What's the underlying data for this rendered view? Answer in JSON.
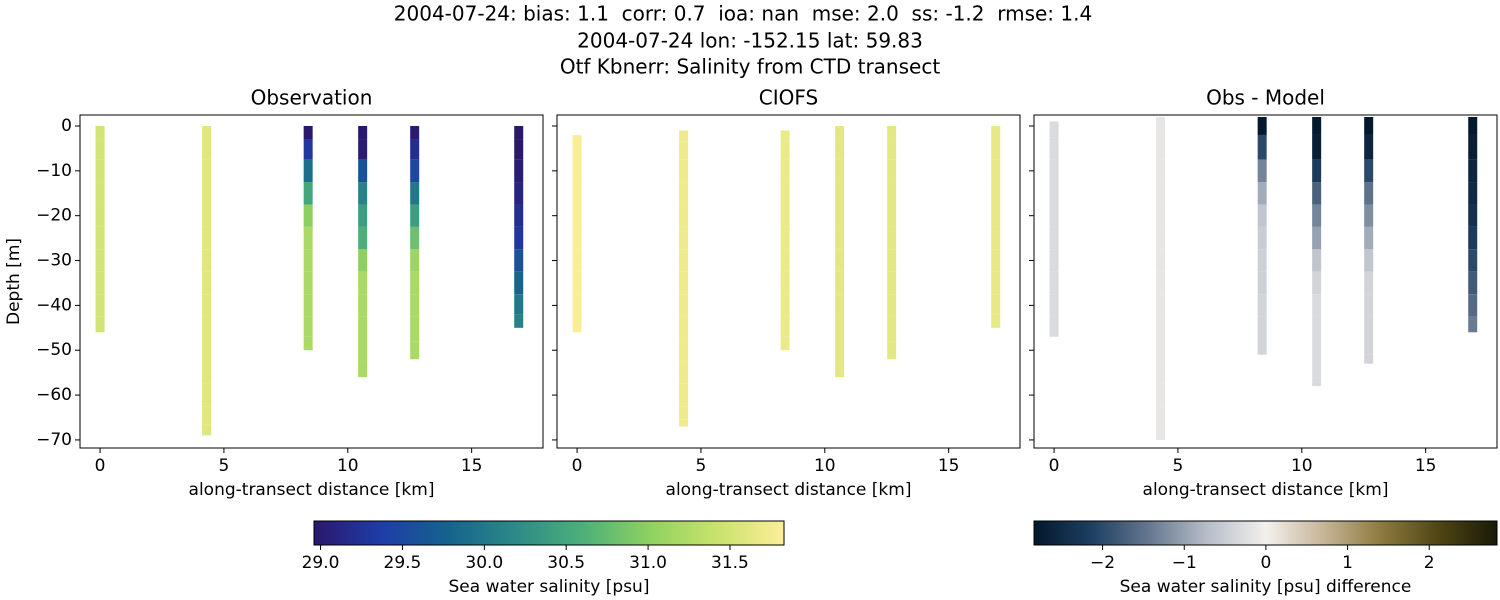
{
  "suptitle": [
    "2004-07-24: bias: 1.1  corr: 0.7  ioa: nan  mse: 2.0  ss: -1.2  rmse: 1.4",
    "2004-07-24 lon: -152.15 lat: 59.83",
    "Otf Kbnerr: Salinity from CTD transect"
  ],
  "colorbars": [
    {
      "label": "Sea water salinity [psu]",
      "clim": [
        28.96,
        31.83
      ],
      "ticks": [
        {
          "value": 29,
          "label": "29.0"
        },
        {
          "value": 29.5,
          "label": "29.5"
        },
        {
          "value": 30,
          "label": "30.0"
        },
        {
          "value": 30.5,
          "label": "30.5"
        },
        {
          "value": 31,
          "label": "31.0"
        },
        {
          "value": 31.5,
          "label": "31.5"
        }
      ],
      "colors": [
        "#2a186c",
        "#1f3da8",
        "#15638d",
        "#2d8a87",
        "#4caf7a",
        "#8fd160",
        "#c9e26d",
        "#fdee99"
      ]
    },
    {
      "label": "Sea water salinity [psu] difference",
      "clim": [
        -2.84,
        2.83
      ],
      "ticks": [
        {
          "value": -2,
          "label": "−2"
        },
        {
          "value": -1,
          "label": "−1"
        },
        0,
        1,
        2
      ],
      "colors": [
        "#04172b",
        "#1e3f62",
        "#66788f",
        "#b7bec8",
        "#f3f0ed",
        "#c6b597",
        "#8d7a3f",
        "#4e4514",
        "#191a08"
      ]
    }
  ],
  "chart_data": [
    {
      "type": "scatter",
      "title": "Observation",
      "xlabel": "along-transect distance [km]",
      "ylabel": "Depth [m]",
      "colorbar": 0,
      "ytick_labels": true,
      "xlim": [
        -0.81,
        17.88
      ],
      "ylim": [
        -71.8,
        2.45
      ],
      "xticks": [
        0,
        5,
        10,
        15
      ],
      "yticks": [
        0,
        {
          "value": -10,
          "label": "−10"
        },
        {
          "value": -20,
          "label": "−20"
        },
        {
          "value": -30,
          "label": "−30"
        },
        {
          "value": -40,
          "label": "−40"
        },
        {
          "value": -50,
          "label": "−50"
        },
        {
          "value": -60,
          "label": "−60"
        },
        {
          "value": -70,
          "label": "−70"
        }
      ],
      "series": [
        {
          "x": 0,
          "y": [
            -1,
            -5,
            -10,
            -15,
            -20,
            -25,
            -30,
            -35,
            -40,
            -45
          ],
          "values": [
            31.5,
            31.5,
            31.5,
            31.5,
            31.5,
            31.5,
            31.5,
            31.5,
            31.5,
            31.5
          ]
        },
        {
          "x": 4.3,
          "y": [
            -1,
            -5,
            -10,
            -15,
            -20,
            -25,
            -30,
            -35,
            -40,
            -45,
            -50,
            -55,
            -60,
            -65,
            -68
          ],
          "values": [
            31.6,
            31.6,
            31.6,
            31.6,
            31.6,
            31.6,
            31.6,
            31.6,
            31.6,
            31.6,
            31.6,
            31.6,
            31.6,
            31.6,
            31.6
          ]
        },
        {
          "x": 8.4,
          "y": [
            -1,
            -5,
            -10,
            -15,
            -20,
            -25,
            -30,
            -35,
            -40,
            -45,
            -49
          ],
          "values": [
            28.9,
            29.3,
            29.9,
            30.5,
            31.0,
            31.2,
            31.2,
            31.2,
            31.2,
            31.2,
            31.2
          ]
        },
        {
          "x": 10.6,
          "y": [
            -1,
            -5,
            -10,
            -15,
            -20,
            -25,
            -30,
            -35,
            -40,
            -45,
            -50,
            -55
          ],
          "values": [
            28.9,
            29.0,
            29.6,
            30.1,
            30.4,
            30.6,
            31.0,
            31.2,
            31.2,
            31.2,
            31.2,
            31.2
          ]
        },
        {
          "x": 12.7,
          "y": [
            -1,
            -5,
            -10,
            -15,
            -20,
            -25,
            -30,
            -35,
            -40,
            -45,
            -51
          ],
          "values": [
            29.0,
            29.2,
            29.5,
            30.0,
            30.4,
            30.8,
            31.1,
            31.2,
            31.2,
            31.2,
            31.2
          ]
        },
        {
          "x": 16.9,
          "y": [
            -1,
            -5,
            -10,
            -15,
            -20,
            -25,
            -30,
            -35,
            -40,
            -44
          ],
          "values": [
            28.9,
            28.9,
            29.0,
            29.1,
            29.2,
            29.3,
            29.6,
            29.8,
            30.0,
            30.1
          ]
        }
      ]
    },
    {
      "type": "scatter",
      "title": "CIOFS",
      "xlabel": "along-transect distance [km]",
      "colorbar": 0,
      "ytick_labels": false,
      "xlim": [
        -0.81,
        17.88
      ],
      "ylim": [
        -71.8,
        2.45
      ],
      "xticks": [
        0,
        5,
        10,
        15
      ],
      "yticks": [
        0,
        -10,
        -20,
        -30,
        -40,
        -50,
        -60,
        -70
      ],
      "series": [
        {
          "x": 0,
          "y": [
            -3,
            -5,
            -10,
            -15,
            -20,
            -25,
            -30,
            -35,
            -40,
            -45
          ],
          "values": [
            31.8,
            31.8,
            31.8,
            31.8,
            31.8,
            31.8,
            31.8,
            31.8,
            31.8,
            31.8
          ]
        },
        {
          "x": 4.3,
          "y": [
            -2,
            -5,
            -10,
            -15,
            -20,
            -25,
            -30,
            -35,
            -40,
            -45,
            -50,
            -55,
            -60,
            -65,
            -66
          ],
          "values": [
            31.72,
            31.72,
            31.72,
            31.72,
            31.72,
            31.72,
            31.72,
            31.72,
            31.72,
            31.72,
            31.72,
            31.72,
            31.72,
            31.72,
            31.72
          ]
        },
        {
          "x": 8.4,
          "y": [
            -2,
            -5,
            -10,
            -15,
            -20,
            -25,
            -30,
            -35,
            -40,
            -45,
            -49
          ],
          "values": [
            31.68,
            31.68,
            31.68,
            31.68,
            31.68,
            31.68,
            31.68,
            31.68,
            31.68,
            31.68,
            31.68
          ]
        },
        {
          "x": 10.6,
          "y": [
            -1,
            -5,
            -10,
            -15,
            -20,
            -25,
            -30,
            -35,
            -40,
            -45,
            -50,
            -55
          ],
          "values": [
            31.62,
            31.62,
            31.62,
            31.62,
            31.62,
            31.62,
            31.62,
            31.62,
            31.62,
            31.62,
            31.62,
            31.62
          ]
        },
        {
          "x": 12.7,
          "y": [
            -1,
            -5,
            -10,
            -15,
            -20,
            -25,
            -30,
            -35,
            -40,
            -45,
            -51
          ],
          "values": [
            31.62,
            31.62,
            31.62,
            31.62,
            31.62,
            31.62,
            31.62,
            31.62,
            31.62,
            31.62,
            31.62
          ]
        },
        {
          "x": 16.9,
          "y": [
            -1,
            -5,
            -10,
            -15,
            -20,
            -25,
            -30,
            -35,
            -40,
            -44
          ],
          "values": [
            31.65,
            31.65,
            31.65,
            31.65,
            31.65,
            31.65,
            31.65,
            31.65,
            31.65,
            31.65
          ]
        }
      ]
    },
    {
      "type": "scatter",
      "title": "Obs - Model",
      "xlabel": "along-transect distance [km]",
      "colorbar": 1,
      "ytick_labels": false,
      "xlim": [
        -0.81,
        17.88
      ],
      "ylim": [
        -71.8,
        2.45
      ],
      "xticks": [
        0,
        5,
        10,
        15
      ],
      "yticks": [
        0,
        -10,
        -20,
        -30,
        -40,
        -50,
        -60,
        -70
      ],
      "series": [
        {
          "x": 0,
          "y": [
            0,
            -5,
            -10,
            -15,
            -20,
            -25,
            -30,
            -35,
            -40,
            -45,
            -46
          ],
          "values": [
            -0.3,
            -0.3,
            -0.3,
            -0.3,
            -0.3,
            -0.3,
            -0.3,
            -0.3,
            -0.3,
            -0.3,
            -0.3
          ]
        },
        {
          "x": 4.3,
          "y": [
            1,
            -5,
            -10,
            -15,
            -20,
            -25,
            -30,
            -35,
            -40,
            -45,
            -50,
            -55,
            -60,
            -65,
            -69
          ],
          "values": [
            -0.15,
            -0.15,
            -0.15,
            -0.15,
            -0.15,
            -0.15,
            -0.15,
            -0.15,
            -0.15,
            -0.15,
            -0.15,
            -0.15,
            -0.15,
            -0.15,
            -0.15
          ]
        },
        {
          "x": 8.4,
          "y": [
            1,
            -5,
            -10,
            -15,
            -20,
            -25,
            -30,
            -35,
            -40,
            -45,
            -50
          ],
          "values": [
            -2.8,
            -2.0,
            -1.3,
            -0.9,
            -0.6,
            -0.5,
            -0.45,
            -0.45,
            -0.4,
            -0.4,
            -0.4
          ]
        },
        {
          "x": 10.6,
          "y": [
            1,
            -5,
            -10,
            -15,
            -20,
            -25,
            -30,
            -35,
            -40,
            -45,
            -50,
            -55,
            -57
          ],
          "values": [
            -2.8,
            -2.7,
            -2.2,
            -1.7,
            -1.3,
            -1.0,
            -0.6,
            -0.4,
            -0.3,
            -0.3,
            -0.3,
            -0.3,
            -0.3
          ]
        },
        {
          "x": 12.7,
          "y": [
            1,
            -5,
            -10,
            -15,
            -20,
            -25,
            -30,
            -35,
            -40,
            -45,
            -50,
            -52
          ],
          "values": [
            -2.8,
            -2.6,
            -2.0,
            -1.5,
            -1.2,
            -0.9,
            -0.6,
            -0.4,
            -0.4,
            -0.4,
            -0.4,
            -0.4
          ]
        },
        {
          "x": 16.9,
          "y": [
            1,
            -5,
            -10,
            -15,
            -20,
            -25,
            -30,
            -35,
            -40,
            -45
          ],
          "values": [
            -2.8,
            -2.7,
            -2.6,
            -2.5,
            -2.4,
            -2.2,
            -2.0,
            -1.8,
            -1.6,
            -1.4
          ]
        }
      ]
    }
  ]
}
